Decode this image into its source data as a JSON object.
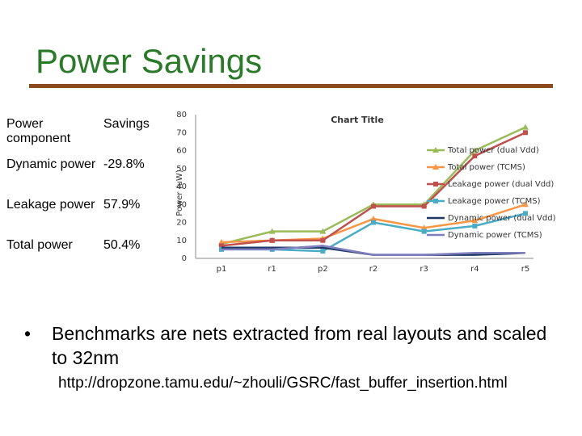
{
  "slide": {
    "title": "Power Savings",
    "bullet": "Benchmarks are nets extracted from real layouts and scaled to 32nm",
    "url": "http://dropzone.tamu.edu/~zhouli/GSRC/fast_buffer_insertion.html",
    "title_color": "#2a7a2a",
    "rule_color": "#8a4a1e"
  },
  "table": {
    "header": [
      "Power component",
      "Savings"
    ],
    "rows": [
      [
        "Dynamic power",
        "-29.8%"
      ],
      [
        "Leakage power",
        "57.9%"
      ],
      [
        "Total power",
        "50.4%"
      ]
    ]
  },
  "chart_data": {
    "type": "line",
    "title": "Chart Title",
    "xlabel": "",
    "ylabel": "Power (uW)",
    "categories": [
      "p1",
      "r1",
      "p2",
      "r2",
      "r3",
      "r4",
      "r5"
    ],
    "ylim": [
      0,
      80
    ],
    "yticks": [
      0,
      10,
      20,
      30,
      40,
      50,
      60,
      70,
      80
    ],
    "grid": false,
    "legend": "right",
    "series": [
      {
        "name": "Total power (dual Vdd)",
        "color": "#9bbb59",
        "marker": "triangle",
        "values": [
          8,
          15,
          15,
          30,
          30,
          60,
          73
        ]
      },
      {
        "name": "Total power (TCMS)",
        "color": "#f79646",
        "marker": "triangle",
        "values": [
          9,
          10,
          11,
          22,
          17,
          21,
          30
        ]
      },
      {
        "name": "Leakage power (dual Vdd)",
        "color": "#c0504d",
        "marker": "square",
        "values": [
          7,
          10,
          10,
          29,
          29,
          57,
          70
        ]
      },
      {
        "name": "Leakage power (TCMS)",
        "color": "#4bacc6",
        "marker": "square",
        "values": [
          5,
          5,
          4,
          20,
          15,
          18,
          25
        ]
      },
      {
        "name": "Dynamic power (dual Vdd)",
        "color": "#1f3864",
        "marker": "none",
        "values": [
          6,
          6,
          6,
          2,
          2,
          2,
          3
        ]
      },
      {
        "name": "Dynamic power (TCMS)",
        "color": "#7f7fbf",
        "marker": "none",
        "values": [
          5,
          5,
          7,
          2,
          2,
          3,
          3
        ]
      }
    ]
  }
}
